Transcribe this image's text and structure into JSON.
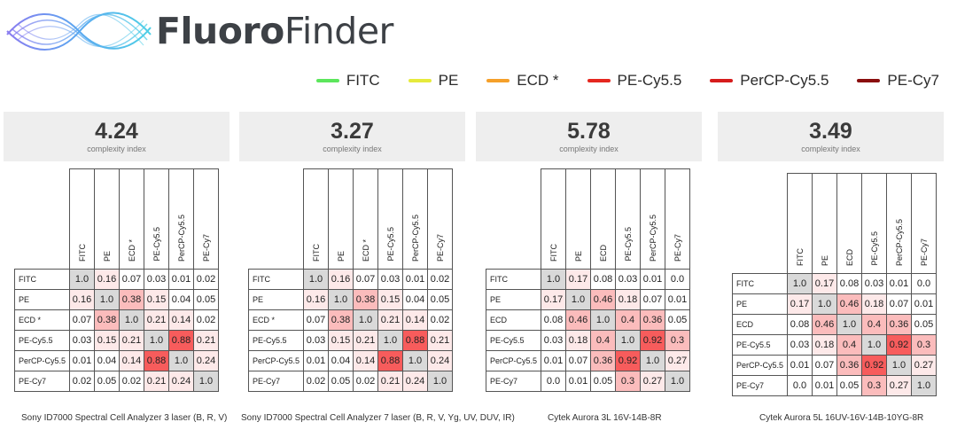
{
  "brand": {
    "name_bold": "Fluoro",
    "name_light": "Finder",
    "logo_icon": "wave-swirl-icon"
  },
  "legend": [
    {
      "label": "FITC",
      "color": "#5ce65c"
    },
    {
      "label": "PE",
      "color": "#e6ea3c"
    },
    {
      "label": "ECD *",
      "color": "#f5a02a"
    },
    {
      "label": "PE-Cy5.5",
      "color": "#e5271f"
    },
    {
      "label": "PerCP-Cy5.5",
      "color": "#d61c1c"
    },
    {
      "label": "PE-Cy7",
      "color": "#8a0e0e"
    }
  ],
  "colors": {
    "diagonal": "#d9d9d9",
    "high": "#f75c5c",
    "mid": "#fbbcbc",
    "low": "#fde9e9",
    "none": "#ffffff"
  },
  "panels": [
    {
      "index": "4.24",
      "index_label": "complexity index",
      "fluors": [
        "FITC",
        "PE",
        "ECD *",
        "PE-Cy5.5",
        "PerCP-Cy5.5",
        "PE-Cy7"
      ],
      "matrix": [
        [
          "1.0",
          "0.16",
          "0.07",
          "0.03",
          "0.01",
          "0.02"
        ],
        [
          "0.16",
          "1.0",
          "0.38",
          "0.15",
          "0.04",
          "0.05"
        ],
        [
          "0.07",
          "0.38",
          "1.0",
          "0.21",
          "0.14",
          "0.02"
        ],
        [
          "0.03",
          "0.15",
          "0.21",
          "1.0",
          "0.88",
          "0.21"
        ],
        [
          "0.01",
          "0.04",
          "0.14",
          "0.88",
          "1.0",
          "0.24"
        ],
        [
          "0.02",
          "0.05",
          "0.02",
          "0.21",
          "0.24",
          "1.0"
        ]
      ],
      "caption": "Sony ID7000 Spectral Cell Analyzer 3 laser (B, R, V)"
    },
    {
      "index": "3.27",
      "index_label": "complexity index",
      "fluors": [
        "FITC",
        "PE",
        "ECD *",
        "PE-Cy5.5",
        "PerCP-Cy5.5",
        "PE-Cy7"
      ],
      "matrix": [
        [
          "1.0",
          "0.16",
          "0.07",
          "0.03",
          "0.01",
          "0.02"
        ],
        [
          "0.16",
          "1.0",
          "0.38",
          "0.15",
          "0.04",
          "0.05"
        ],
        [
          "0.07",
          "0.38",
          "1.0",
          "0.21",
          "0.14",
          "0.02"
        ],
        [
          "0.03",
          "0.15",
          "0.21",
          "1.0",
          "0.88",
          "0.21"
        ],
        [
          "0.01",
          "0.04",
          "0.14",
          "0.88",
          "1.0",
          "0.24"
        ],
        [
          "0.02",
          "0.05",
          "0.02",
          "0.21",
          "0.24",
          "1.0"
        ]
      ],
      "caption": "Sony ID7000 Spectral Cell Analyzer 7 laser (B, R, V, Yg, UV, DUV, IR)"
    },
    {
      "index": "5.78",
      "index_label": "complexity index",
      "fluors": [
        "FITC",
        "PE",
        "ECD",
        "PE-Cy5.5",
        "PerCP-Cy5.5",
        "PE-Cy7"
      ],
      "matrix": [
        [
          "1.0",
          "0.17",
          "0.08",
          "0.03",
          "0.01",
          "0.0"
        ],
        [
          "0.17",
          "1.0",
          "0.46",
          "0.18",
          "0.07",
          "0.01"
        ],
        [
          "0.08",
          "0.46",
          "1.0",
          "0.4",
          "0.36",
          "0.05"
        ],
        [
          "0.03",
          "0.18",
          "0.4",
          "1.0",
          "0.92",
          "0.3"
        ],
        [
          "0.01",
          "0.07",
          "0.36",
          "0.92",
          "1.0",
          "0.27"
        ],
        [
          "0.0",
          "0.01",
          "0.05",
          "0.3",
          "0.27",
          "1.0"
        ]
      ],
      "caption": "Cytek Aurora 3L 16V-14B-8R"
    },
    {
      "index": "3.49",
      "index_label": "complexity index",
      "fluors": [
        "FITC",
        "PE",
        "ECD",
        "PE-Cy5.5",
        "PerCP-Cy5.5",
        "PE-Cy7"
      ],
      "matrix": [
        [
          "1.0",
          "0.17",
          "0.08",
          "0.03",
          "0.01",
          "0.0"
        ],
        [
          "0.17",
          "1.0",
          "0.46",
          "0.18",
          "0.07",
          "0.01"
        ],
        [
          "0.08",
          "0.46",
          "1.0",
          "0.4",
          "0.36",
          "0.05"
        ],
        [
          "0.03",
          "0.18",
          "0.4",
          "1.0",
          "0.92",
          "0.3"
        ],
        [
          "0.01",
          "0.07",
          "0.36",
          "0.92",
          "1.0",
          "0.27"
        ],
        [
          "0.0",
          "0.01",
          "0.05",
          "0.3",
          "0.27",
          "1.0"
        ]
      ],
      "caption": "Cytek Aurora 5L 16UV-16V-14B-10YG-8R"
    }
  ]
}
